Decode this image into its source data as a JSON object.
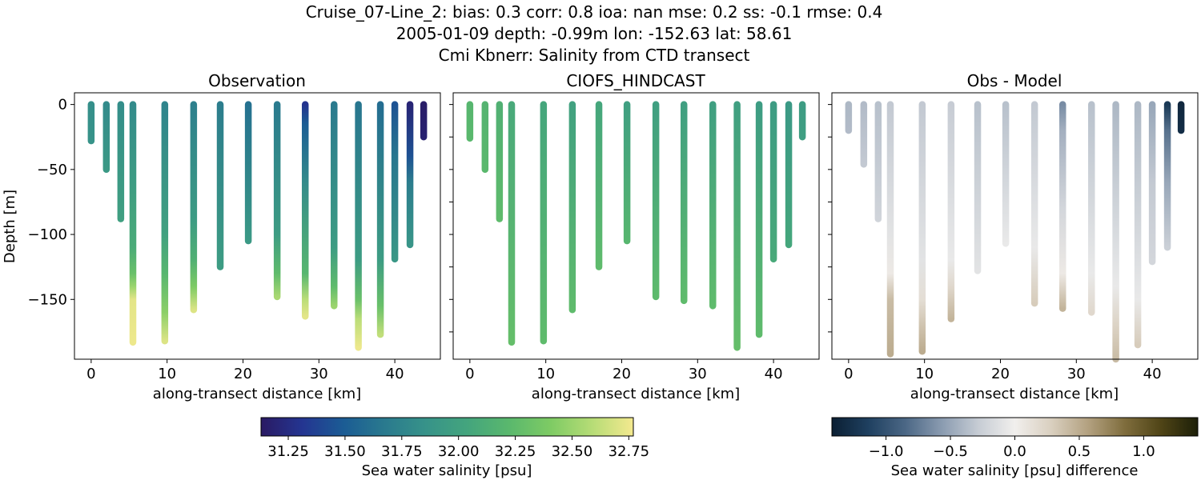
{
  "figure": {
    "title_lines": [
      "Cruise_07-Line_2: bias: 0.3  corr: 0.8  ioa: nan  mse: 0.2  ss: -0.1  rmse: 0.4",
      "2005-01-09 depth: -0.99m lon: -152.63 lat: 58.61",
      "Cmi Kbnerr: Salinity from CTD transect"
    ]
  },
  "colors": {
    "salinity_colormap": [
      "#2a1a63",
      "#243591",
      "#1b5c94",
      "#2a7a8e",
      "#379389",
      "#44a57d",
      "#5ab86d",
      "#7ecb64",
      "#b6dc76",
      "#f4e98f"
    ],
    "diff_colormap": [
      "#0b1f33",
      "#1f4060",
      "#4b6785",
      "#8a9bb0",
      "#c6ccd4",
      "#f1efed",
      "#d9cfbf",
      "#b3a180",
      "#7f6d3d",
      "#4f4416",
      "#1c1f08"
    ],
    "frame": "#000000"
  },
  "chart_data": [
    {
      "type": "scatter",
      "title": "Observation",
      "xlabel": "along-transect distance [km]",
      "ylabel": "Depth [m]",
      "xlim": [
        -2.2,
        46.0
      ],
      "ylim": [
        -196,
        9
      ],
      "xticks": [
        0,
        10,
        20,
        30,
        40
      ],
      "xtick_labels": [
        "0",
        "10",
        "20",
        "30",
        "40"
      ],
      "yticks": [
        0,
        -50,
        -100,
        -150
      ],
      "ytick_labels": [
        "0",
        "−50",
        "−100",
        "−150"
      ],
      "grid": false,
      "colorbar": "salinity",
      "profiles": [
        {
          "x": 0.0,
          "max_depth": -28,
          "values": [
            [
              0,
              31.83
            ],
            [
              -28,
              31.86
            ]
          ]
        },
        {
          "x": 2.0,
          "max_depth": -50,
          "values": [
            [
              0,
              31.8
            ],
            [
              -50,
              31.92
            ]
          ]
        },
        {
          "x": 3.9,
          "max_depth": -88,
          "values": [
            [
              0,
              31.82
            ],
            [
              -88,
              31.98
            ]
          ]
        },
        {
          "x": 5.5,
          "max_depth": -183,
          "values": [
            [
              0,
              31.8
            ],
            [
              -60,
              31.95
            ],
            [
              -110,
              32.1
            ],
            [
              -130,
              32.3
            ],
            [
              -140,
              32.5
            ],
            [
              -150,
              32.72
            ],
            [
              -183,
              32.75
            ]
          ]
        },
        {
          "x": 9.7,
          "max_depth": -182,
          "values": [
            [
              0,
              31.75
            ],
            [
              -100,
              32.0
            ],
            [
              -130,
              32.2
            ],
            [
              -160,
              32.45
            ],
            [
              -182,
              32.7
            ]
          ]
        },
        {
          "x": 13.5,
          "max_depth": -158,
          "values": [
            [
              0,
              31.72
            ],
            [
              -90,
              31.95
            ],
            [
              -120,
              32.15
            ],
            [
              -140,
              32.4
            ],
            [
              -158,
              32.7
            ]
          ]
        },
        {
          "x": 17.0,
          "max_depth": -125,
          "values": [
            [
              0,
              31.7
            ],
            [
              -125,
              31.95
            ]
          ]
        },
        {
          "x": 20.7,
          "max_depth": -105,
          "values": [
            [
              0,
              31.62
            ],
            [
              -105,
              31.92
            ]
          ]
        },
        {
          "x": 24.5,
          "max_depth": -148,
          "values": [
            [
              0,
              31.68
            ],
            [
              -100,
              31.95
            ],
            [
              -130,
              32.25
            ],
            [
              -148,
              32.55
            ]
          ]
        },
        {
          "x": 28.2,
          "max_depth": -163,
          "values": [
            [
              0,
              31.3
            ],
            [
              -15,
              31.5
            ],
            [
              -60,
              31.8
            ],
            [
              -130,
              32.2
            ],
            [
              -150,
              32.6
            ],
            [
              -163,
              32.72
            ]
          ]
        },
        {
          "x": 32.0,
          "max_depth": -155,
          "values": [
            [
              0,
              31.68
            ],
            [
              -110,
              31.95
            ],
            [
              -140,
              32.25
            ],
            [
              -155,
              32.5
            ]
          ]
        },
        {
          "x": 35.2,
          "max_depth": -187,
          "values": [
            [
              0,
              31.65
            ],
            [
              -120,
              31.95
            ],
            [
              -150,
              32.3
            ],
            [
              -165,
              32.6
            ],
            [
              -187,
              32.75
            ]
          ]
        },
        {
          "x": 38.1,
          "max_depth": -177,
          "values": [
            [
              0,
              31.6
            ],
            [
              -120,
              31.95
            ],
            [
              -155,
              32.3
            ],
            [
              -177,
              32.62
            ]
          ]
        },
        {
          "x": 40.0,
          "max_depth": -119,
          "values": [
            [
              0,
              31.45
            ],
            [
              -40,
              31.65
            ],
            [
              -119,
              31.9
            ]
          ]
        },
        {
          "x": 42.0,
          "max_depth": -108,
          "values": [
            [
              0,
              31.2
            ],
            [
              -40,
              31.45
            ],
            [
              -60,
              31.7
            ],
            [
              -108,
              31.88
            ]
          ]
        },
        {
          "x": 43.8,
          "max_depth": -25,
          "values": [
            [
              0,
              31.15
            ],
            [
              -25,
              31.18
            ]
          ]
        }
      ]
    },
    {
      "type": "scatter",
      "title": "CIOFS_HINDCAST",
      "xlabel": "along-transect distance [km]",
      "ylabel": "",
      "xlim": [
        -2.2,
        46.0
      ],
      "ylim": [
        -196,
        9
      ],
      "xticks": [
        0,
        10,
        20,
        30,
        40
      ],
      "xtick_labels": [
        "0",
        "10",
        "20",
        "30",
        "40"
      ],
      "yticks": [
        0,
        -25,
        -50,
        -75,
        -100,
        -125,
        -150,
        -175
      ],
      "ytick_labels": [],
      "grid": false,
      "colorbar": "salinity",
      "profiles": [
        {
          "x": 0.0,
          "max_depth": -26,
          "values": [
            [
              0,
              32.2
            ],
            [
              -26,
              32.22
            ]
          ]
        },
        {
          "x": 2.0,
          "max_depth": -50,
          "values": [
            [
              0,
              32.18
            ],
            [
              -50,
              32.22
            ]
          ]
        },
        {
          "x": 3.9,
          "max_depth": -88,
          "values": [
            [
              0,
              32.15
            ],
            [
              -88,
              32.25
            ]
          ]
        },
        {
          "x": 5.5,
          "max_depth": -183,
          "values": [
            [
              0,
              32.08
            ],
            [
              -183,
              32.28
            ]
          ]
        },
        {
          "x": 9.7,
          "max_depth": -182,
          "values": [
            [
              0,
              32.05
            ],
            [
              -182,
              32.25
            ]
          ]
        },
        {
          "x": 13.5,
          "max_depth": -158,
          "values": [
            [
              0,
              32.0
            ],
            [
              -158,
              32.25
            ]
          ]
        },
        {
          "x": 17.0,
          "max_depth": -125,
          "values": [
            [
              0,
              32.05
            ],
            [
              -125,
              32.25
            ]
          ]
        },
        {
          "x": 20.7,
          "max_depth": -105,
          "values": [
            [
              0,
              31.98
            ],
            [
              -105,
              32.2
            ]
          ]
        },
        {
          "x": 24.5,
          "max_depth": -148,
          "values": [
            [
              0,
              31.98
            ],
            [
              -148,
              32.24
            ]
          ]
        },
        {
          "x": 28.2,
          "max_depth": -151,
          "values": [
            [
              0,
              31.98
            ],
            [
              -151,
              32.25
            ]
          ]
        },
        {
          "x": 32.0,
          "max_depth": -155,
          "values": [
            [
              0,
              31.98
            ],
            [
              -155,
              32.25
            ]
          ]
        },
        {
          "x": 35.2,
          "max_depth": -187,
          "values": [
            [
              0,
              31.98
            ],
            [
              -187,
              32.28
            ]
          ]
        },
        {
          "x": 38.1,
          "max_depth": -177,
          "values": [
            [
              0,
              31.95
            ],
            [
              -177,
              32.25
            ]
          ]
        },
        {
          "x": 40.0,
          "max_depth": -119,
          "values": [
            [
              0,
              31.95
            ],
            [
              -119,
              32.08
            ]
          ]
        },
        {
          "x": 42.0,
          "max_depth": -108,
          "values": [
            [
              0,
              31.92
            ],
            [
              -108,
              32.05
            ]
          ]
        },
        {
          "x": 43.8,
          "max_depth": -25,
          "values": [
            [
              0,
              31.95
            ],
            [
              -25,
              31.97
            ]
          ]
        }
      ]
    },
    {
      "type": "scatter",
      "title": "Obs - Model",
      "xlabel": "along-transect distance [km]",
      "ylabel": "",
      "xlim": [
        -2.2,
        46.0
      ],
      "ylim": [
        -196,
        9
      ],
      "xticks": [
        0,
        10,
        20,
        30,
        40
      ],
      "xtick_labels": [
        "0",
        "10",
        "20",
        "30",
        "40"
      ],
      "yticks": [
        0,
        -25,
        -50,
        -75,
        -100,
        -125,
        -150,
        -175
      ],
      "ytick_labels": [],
      "grid": false,
      "colorbar": "difference",
      "profiles": [
        {
          "x": 0.0,
          "max_depth": -20,
          "values": [
            [
              0,
              -0.4
            ],
            [
              -20,
              -0.38
            ]
          ]
        },
        {
          "x": 2.0,
          "max_depth": -46,
          "values": [
            [
              0,
              -0.38
            ],
            [
              -46,
              -0.3
            ]
          ]
        },
        {
          "x": 3.9,
          "max_depth": -88,
          "values": [
            [
              0,
              -0.35
            ],
            [
              -88,
              -0.22
            ]
          ]
        },
        {
          "x": 5.5,
          "max_depth": -192,
          "values": [
            [
              0,
              -0.3
            ],
            [
              -100,
              -0.1
            ],
            [
              -130,
              0.05
            ],
            [
              -150,
              0.4
            ],
            [
              -192,
              0.5
            ]
          ]
        },
        {
          "x": 9.7,
          "max_depth": -190,
          "values": [
            [
              0,
              -0.3
            ],
            [
              -120,
              -0.1
            ],
            [
              -150,
              0.15
            ],
            [
              -170,
              0.35
            ],
            [
              -190,
              0.5
            ]
          ]
        },
        {
          "x": 13.5,
          "max_depth": -165,
          "values": [
            [
              0,
              -0.28
            ],
            [
              -120,
              -0.05
            ],
            [
              -140,
              0.2
            ],
            [
              -165,
              0.45
            ]
          ]
        },
        {
          "x": 17.0,
          "max_depth": -128,
          "values": [
            [
              0,
              -0.35
            ],
            [
              -128,
              -0.1
            ]
          ]
        },
        {
          "x": 20.7,
          "max_depth": -107,
          "values": [
            [
              0,
              -0.35
            ],
            [
              -107,
              -0.05
            ]
          ]
        },
        {
          "x": 24.5,
          "max_depth": -153,
          "values": [
            [
              0,
              -0.3
            ],
            [
              -110,
              -0.05
            ],
            [
              -153,
              0.3
            ]
          ]
        },
        {
          "x": 28.2,
          "max_depth": -157,
          "values": [
            [
              0,
              -0.65
            ],
            [
              -20,
              -0.45
            ],
            [
              -80,
              -0.2
            ],
            [
              -130,
              0.05
            ],
            [
              -157,
              0.45
            ]
          ]
        },
        {
          "x": 32.0,
          "max_depth": -160,
          "values": [
            [
              0,
              -0.35
            ],
            [
              -130,
              -0.05
            ],
            [
              -160,
              0.2
            ]
          ]
        },
        {
          "x": 35.2,
          "max_depth": -196,
          "values": [
            [
              0,
              -0.4
            ],
            [
              -140,
              -0.05
            ],
            [
              -170,
              0.25
            ],
            [
              -196,
              0.4
            ]
          ]
        },
        {
          "x": 38.1,
          "max_depth": -185,
          "values": [
            [
              0,
              -0.4
            ],
            [
              -150,
              -0.05
            ],
            [
              -185,
              0.3
            ]
          ]
        },
        {
          "x": 40.0,
          "max_depth": -121,
          "values": [
            [
              0,
              -0.5
            ],
            [
              -60,
              -0.3
            ],
            [
              -121,
              -0.2
            ]
          ]
        },
        {
          "x": 42.0,
          "max_depth": -110,
          "values": [
            [
              0,
              -1.2
            ],
            [
              -20,
              -0.8
            ],
            [
              -60,
              -0.5
            ],
            [
              -110,
              -0.25
            ]
          ]
        },
        {
          "x": 43.8,
          "max_depth": -20,
          "values": [
            [
              0,
              -1.35
            ],
            [
              -20,
              -1.3
            ]
          ]
        }
      ]
    }
  ],
  "colorbars": {
    "salinity": {
      "label": "Sea water salinity [psu]",
      "range": [
        31.13,
        32.77
      ],
      "ticks": [
        31.25,
        31.5,
        31.75,
        32.0,
        32.25,
        32.5,
        32.75
      ],
      "tick_labels": [
        "31.25",
        "31.50",
        "31.75",
        "32.00",
        "32.25",
        "32.50",
        "32.75"
      ]
    },
    "difference": {
      "label": "Sea water salinity [psu] difference",
      "range": [
        -1.42,
        1.42
      ],
      "ticks": [
        -1.0,
        -0.5,
        0.0,
        0.5,
        1.0
      ],
      "tick_labels": [
        "−1.0",
        "−0.5",
        "0.0",
        "0.5",
        "1.0"
      ]
    }
  }
}
